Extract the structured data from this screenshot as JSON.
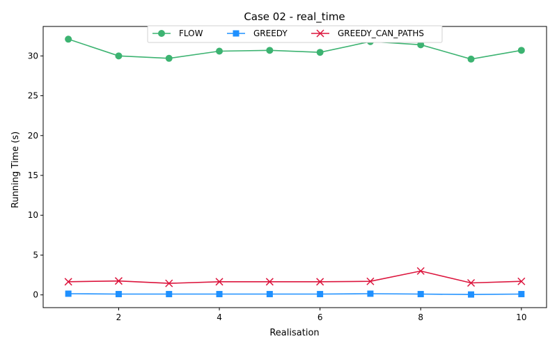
{
  "chart_data": {
    "type": "line",
    "title": "Case 02 - real_time",
    "xlabel": "Realisation",
    "ylabel": "Running Time (s)",
    "xlim": [
      0.5,
      10.5
    ],
    "ylim": [
      -1.6,
      33.7
    ],
    "xticks": [
      2,
      4,
      6,
      8,
      10
    ],
    "yticks": [
      0,
      5,
      10,
      15,
      20,
      25,
      30
    ],
    "grid": false,
    "legend_position": "top-center",
    "x": [
      1,
      2,
      3,
      4,
      5,
      6,
      7,
      8,
      9,
      10
    ],
    "series": [
      {
        "name": "FLOW",
        "color": "#3cb371",
        "marker": "circle",
        "values": [
          32.1,
          30.0,
          29.7,
          30.6,
          30.7,
          30.45,
          31.8,
          31.4,
          29.6,
          30.7
        ]
      },
      {
        "name": "GREEDY",
        "color": "#1e90ff",
        "marker": "square",
        "values": [
          0.15,
          0.1,
          0.1,
          0.1,
          0.1,
          0.1,
          0.15,
          0.1,
          0.05,
          0.1
        ]
      },
      {
        "name": "GREEDY_CAN_PATHS",
        "color": "#dc143c",
        "marker": "x",
        "values": [
          1.65,
          1.75,
          1.45,
          1.65,
          1.65,
          1.65,
          1.7,
          3.0,
          1.5,
          1.7
        ]
      }
    ]
  }
}
